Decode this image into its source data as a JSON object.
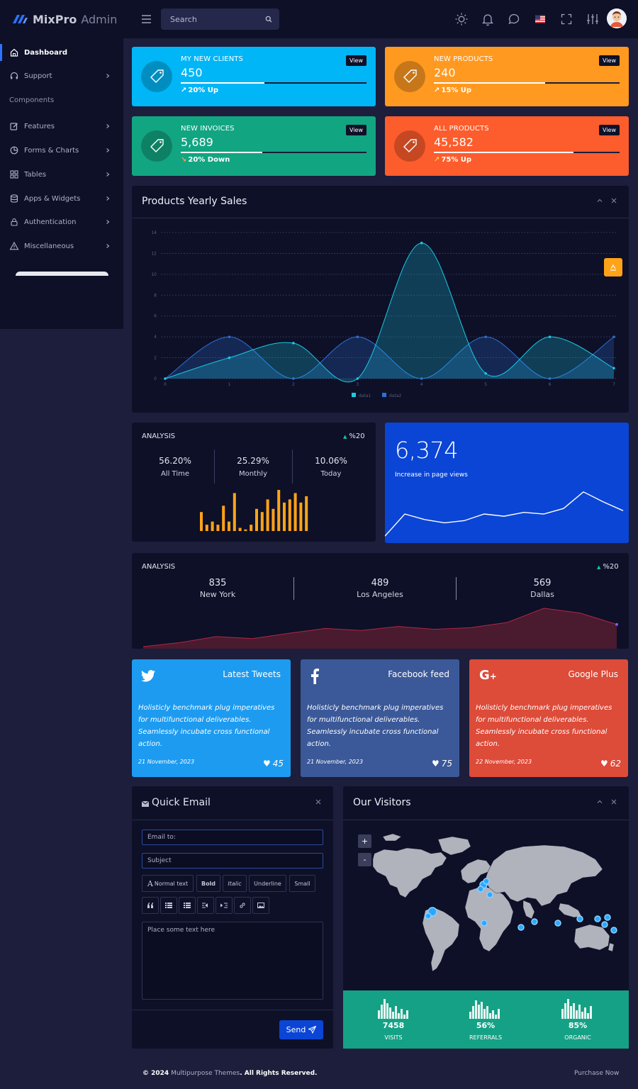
{
  "brand": {
    "name_bold": "MixPro",
    "name_light": "Admin"
  },
  "search": {
    "placeholder": "Search"
  },
  "sidebar": {
    "items": [
      {
        "label": "Dashboard",
        "active": true,
        "icon": "home-icon"
      },
      {
        "label": "Support",
        "icon": "headset-icon"
      },
      {
        "label": "Features",
        "icon": "edit-icon"
      },
      {
        "label": "Forms & Charts",
        "icon": "pie-icon"
      },
      {
        "label": "Tables",
        "icon": "grid-icon"
      },
      {
        "label": "Apps & Widgets",
        "icon": "database-icon"
      },
      {
        "label": "Authentication",
        "icon": "lock-icon"
      },
      {
        "label": "Miscellaneous",
        "icon": "alert-triangle-icon"
      }
    ],
    "section": "Components"
  },
  "stats": [
    {
      "title": "MY NEW CLIENTS",
      "value": "450",
      "change": "20% Up",
      "view": "View",
      "color": "#00b6f7",
      "progress": 0.45
    },
    {
      "title": "NEW PRODUCTS",
      "value": "240",
      "change": "15% Up",
      "view": "View",
      "color": "#ff9920",
      "progress": 0.6
    },
    {
      "title": "NEW INVOICES",
      "value": "5,689",
      "change": "20% Down",
      "view": "View",
      "color": "#12a582",
      "progress": 0.44
    },
    {
      "title": "ALL PRODUCTS",
      "value": "45,582",
      "change": "75% Up",
      "view": "View",
      "color": "#fd5c2c",
      "progress": 0.75
    }
  ],
  "yearly": {
    "title": "Products Yearly Sales",
    "chart_data": {
      "type": "area",
      "x": [
        0,
        1,
        2,
        3,
        4,
        5,
        6,
        7
      ],
      "ylim": [
        0,
        14
      ],
      "series": [
        {
          "name": "data1",
          "values": [
            0,
            2,
            3.4,
            0,
            13,
            0.5,
            4,
            1
          ],
          "color": "#1bc9e4"
        },
        {
          "name": "data2",
          "values": [
            0,
            4,
            0,
            4,
            0,
            4,
            0,
            4
          ],
          "color": "#2e6fd6"
        }
      ]
    }
  },
  "analysis1": {
    "title": "ANALYSIS",
    "trend": "%20",
    "stats": [
      {
        "value": "56.20%",
        "label": "All Time"
      },
      {
        "value": "25.29%",
        "label": "Monthly"
      },
      {
        "value": "10.06%",
        "label": "Today"
      }
    ],
    "chart_data": {
      "type": "bar",
      "values": [
        6,
        2,
        3,
        2,
        8,
        3,
        12,
        1,
        0.5,
        2,
        7,
        6,
        10,
        7,
        13,
        9,
        10,
        12,
        9,
        11
      ],
      "color": "#ffa318"
    }
  },
  "pageviews": {
    "value": "6,374",
    "label": "Increase in page views",
    "chart_data": {
      "type": "line",
      "values": [
        1,
        5,
        4,
        3.4,
        3.8,
        5,
        4.6,
        5.3,
        5,
        6,
        9,
        7.2,
        5.6
      ]
    }
  },
  "analysis2": {
    "title": "ANALYSIS",
    "trend": "%20",
    "cities": [
      {
        "value": "835",
        "label": "New York"
      },
      {
        "value": "489",
        "label": "Los Angeles"
      },
      {
        "value": "569",
        "label": "Dallas"
      }
    ],
    "chart_data": {
      "type": "area",
      "values": [
        0.5,
        1.5,
        3,
        2.5,
        3.8,
        5,
        4.5,
        5.5,
        4.8,
        5.2,
        6.5,
        10,
        8.8,
        6
      ]
    }
  },
  "social": [
    {
      "network": "Latest Tweets",
      "icon": "twitter-icon",
      "color": "#1d9bf0",
      "text": "Holisticly benchmark plug imperatives for multifunctional deliverables. Seamlessly incubate cross functional action.",
      "date": "21 November, 2023",
      "likes": "45"
    },
    {
      "network": "Facebook feed",
      "icon": "facebook-icon",
      "color": "#3b5998",
      "text": "Holisticly benchmark plug imperatives for multifunctional deliverables. Seamlessly incubate cross functional action.",
      "date": "21 November, 2023",
      "likes": "75"
    },
    {
      "network": "Google Plus",
      "icon": "google-plus-icon",
      "color": "#dd4b39",
      "text": "Holisticly benchmark plug imperatives for multifunctional deliverables. Seamlessly incubate cross functional action.",
      "date": "22 November, 2023",
      "likes": "62"
    }
  ],
  "email": {
    "title": "Quick Email",
    "to_placeholder": "Email to:",
    "subject_placeholder": "Subject",
    "body_placeholder": "Place some text here",
    "toolbar": {
      "normal": "Normal text",
      "bold": "Bold",
      "italic": "Italic",
      "underline": "Underline",
      "small": "Small"
    },
    "send": "Send"
  },
  "visitors": {
    "title": "Our Visitors",
    "zoom_in": "+",
    "zoom_out": "-",
    "stats": [
      {
        "value": "7458",
        "label": "VISITS"
      },
      {
        "value": "56%",
        "label": "REFERRALS"
      },
      {
        "value": "85%",
        "label": "ORGANIC"
      }
    ],
    "bg": "#15a185"
  },
  "footer": {
    "copyright": "© 2024",
    "company": "Multipurpose Themes",
    "rights": ". All Rights Reserved.",
    "purchase": "Purchase Now"
  }
}
